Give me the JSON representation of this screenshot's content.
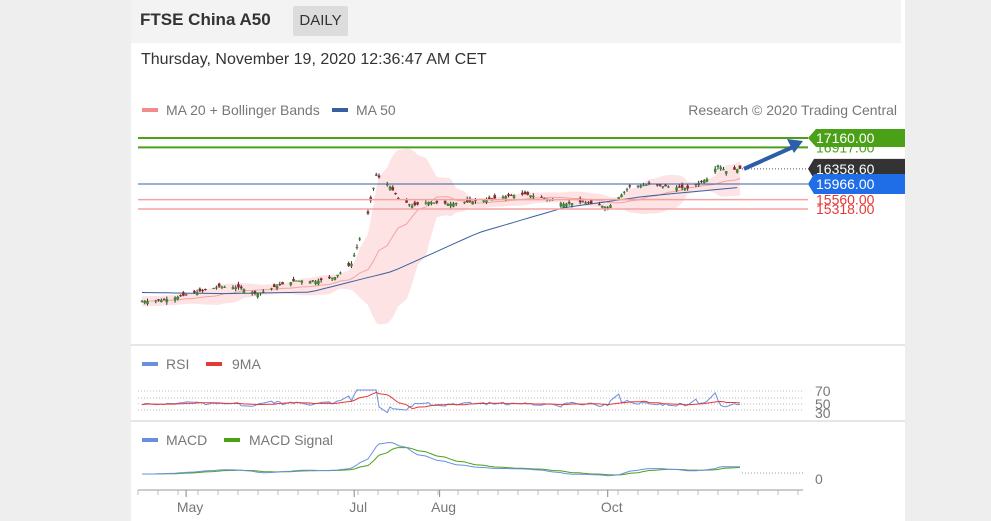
{
  "header": {
    "symbol": "FTSE China A50",
    "period": "DAILY"
  },
  "timestamp": "Thursday, November 19, 2020 12:36:47 AM CET",
  "price_panel": {
    "legend": [
      {
        "label": "MA 20 + Bollinger Bands",
        "color": "#f28b8b"
      },
      {
        "label": "MA 50",
        "color": "#3a5fa0"
      }
    ],
    "credit": "Research © 2020 Trading Central",
    "levels": [
      {
        "value": 17160.0,
        "label": "17160.00",
        "color": "#4aa017",
        "kind": "target"
      },
      {
        "value": 16917.0,
        "label": "16917.00",
        "color": "#4aa017",
        "kind": "resistance"
      },
      {
        "value": 16358.6,
        "label": "16358.60",
        "color": "#333333",
        "kind": "last"
      },
      {
        "value": 15966.0,
        "label": "15966.00",
        "color": "#1f6ee8",
        "kind": "pivot"
      },
      {
        "value": 15560.0,
        "label": "15560.00",
        "color": "#e53935",
        "kind": "support"
      },
      {
        "value": 15318.0,
        "label": "15318.00",
        "color": "#e53935",
        "kind": "support"
      }
    ],
    "arrow_color": "#2e5ea8"
  },
  "rsi_panel": {
    "legend": [
      {
        "label": "RSI",
        "color": "#6b8ee0"
      },
      {
        "label": "9MA",
        "color": "#e53935"
      }
    ],
    "levels": [
      "70",
      "50",
      "30"
    ]
  },
  "macd_panel": {
    "legend": [
      {
        "label": "MACD",
        "color": "#6b8ee0"
      },
      {
        "label": "MACD Signal",
        "color": "#4aa017"
      }
    ],
    "zero_label": "0"
  },
  "x_axis": {
    "labels": [
      "May",
      "Jul",
      "Aug",
      "Oct"
    ]
  },
  "chart_data": {
    "type": "candlestick",
    "title": "FTSE China A50",
    "period": "DAILY",
    "x_range": [
      "2020-04-15",
      "2020-11-18"
    ],
    "y_range": [
      11500,
      17500
    ],
    "x_tick_labels": [
      {
        "label": "May",
        "date": "2020-05-01"
      },
      {
        "label": "Jul",
        "date": "2020-07-01"
      },
      {
        "label": "Aug",
        "date": "2020-08-01"
      },
      {
        "label": "Oct",
        "date": "2020-10-01"
      }
    ],
    "close_series_approx": [
      [
        "2020-04-15",
        12920
      ],
      [
        "2020-04-22",
        12950
      ],
      [
        "2020-04-29",
        13050
      ],
      [
        "2020-05-06",
        13180
      ],
      [
        "2020-05-13",
        13300
      ],
      [
        "2020-05-20",
        13280
      ],
      [
        "2020-05-27",
        13120
      ],
      [
        "2020-06-03",
        13320
      ],
      [
        "2020-06-10",
        13460
      ],
      [
        "2020-06-17",
        13440
      ],
      [
        "2020-06-24",
        13550
      ],
      [
        "2020-06-30",
        13900
      ],
      [
        "2020-07-06",
        15200
      ],
      [
        "2020-07-09",
        16200
      ],
      [
        "2020-07-14",
        15900
      ],
      [
        "2020-07-17",
        15600
      ],
      [
        "2020-07-22",
        15400
      ],
      [
        "2020-07-28",
        15500
      ],
      [
        "2020-08-04",
        15450
      ],
      [
        "2020-08-11",
        15500
      ],
      [
        "2020-08-18",
        15550
      ],
      [
        "2020-08-25",
        15650
      ],
      [
        "2020-09-01",
        15700
      ],
      [
        "2020-09-08",
        15600
      ],
      [
        "2020-09-15",
        15450
      ],
      [
        "2020-09-22",
        15500
      ],
      [
        "2020-09-29",
        15400
      ],
      [
        "2020-10-01",
        15350
      ],
      [
        "2020-10-09",
        15900
      ],
      [
        "2020-10-16",
        15950
      ],
      [
        "2020-10-23",
        15900
      ],
      [
        "2020-10-30",
        15850
      ],
      [
        "2020-11-06",
        16100
      ],
      [
        "2020-11-10",
        16450
      ],
      [
        "2020-11-13",
        16300
      ],
      [
        "2020-11-18",
        16358.6
      ]
    ],
    "ma50_approx": [
      [
        "2020-04-15",
        13150
      ],
      [
        "2020-05-15",
        13120
      ],
      [
        "2020-06-15",
        13160
      ],
      [
        "2020-07-15",
        13700
      ],
      [
        "2020-08-15",
        14700
      ],
      [
        "2020-09-15",
        15350
      ],
      [
        "2020-10-15",
        15650
      ],
      [
        "2020-11-18",
        15880
      ]
    ],
    "forecast": {
      "from": 16358.6,
      "to": 17160.0
    }
  }
}
